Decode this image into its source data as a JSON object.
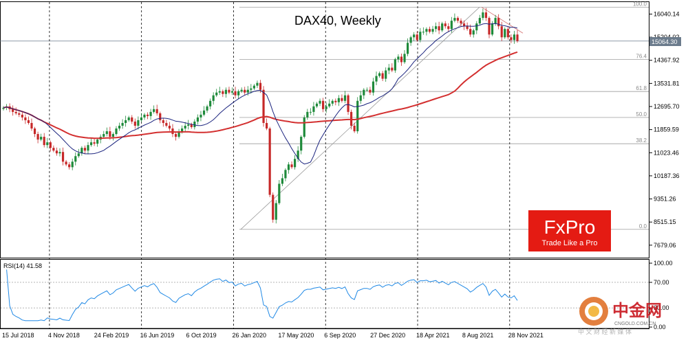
{
  "chart_data": [
    {
      "type": "candlestick",
      "title": "DAX40, Weekly",
      "symbol": "DAX40",
      "timeframe": "Weekly",
      "y_ticks": [
        16040.14,
        15204.02,
        14367.92,
        13531.81,
        12695.7,
        11859.59,
        11023.46,
        10187.36,
        9351.26,
        8515.15,
        7679.06
      ],
      "y_tick_labels": [
        "16040.14",
        "15204.02",
        "14367.92",
        "13531.81",
        "12695.70",
        "11859.59",
        "11023.46",
        "10187.36",
        "9351.26",
        "8515.15",
        "7679.06"
      ],
      "ylim": [
        7400,
        16600
      ],
      "current_price_label": "15064.30",
      "current_price": 15064.3,
      "x_tick_labels": [
        "15 Jul 2018",
        "4 Nov 2018",
        "24 Feb 2019",
        "16 Jun 2019",
        "6 Oct 2019",
        "26 Jan 2020",
        "17 May 2020",
        "6 Sep 2020",
        "27 Dec 2020",
        "18 Apr 2021",
        "8 Aug 2021",
        "28 Nov 2021"
      ],
      "moving_averages": [
        {
          "color": "#1a237e",
          "description": "short-term moving average"
        },
        {
          "color": "#d32f2f",
          "description": "long-term moving average"
        }
      ],
      "fibonacci_levels": [
        {
          "label": "100.0",
          "value": 16290
        },
        {
          "label": "76.4",
          "value": 14400
        },
        {
          "label": "61.8",
          "value": 13240
        },
        {
          "label": "50.0",
          "value": 12300
        },
        {
          "label": "38.2",
          "value": 11350
        },
        {
          "label": "0.0",
          "value": 8250
        }
      ],
      "weekly_closes": [
        12650,
        12700,
        12600,
        12500,
        12450,
        12400,
        12300,
        12200,
        12100,
        11900,
        11700,
        11500,
        11600,
        11300,
        11400,
        11200,
        11100,
        11000,
        11050,
        10700,
        10600,
        10500,
        10700,
        10900,
        11000,
        11200,
        11100,
        11300,
        11400,
        11350,
        11500,
        11600,
        11700,
        11800,
        11600,
        11700,
        11900,
        12000,
        12100,
        12200,
        12300,
        12150,
        12000,
        12200,
        12300,
        12400,
        12350,
        12500,
        12600,
        12450,
        12200,
        12100,
        12000,
        11900,
        11700,
        11600,
        11800,
        11900,
        12000,
        12050,
        11950,
        12150,
        12300,
        12400,
        12550,
        12700,
        12900,
        13100,
        13200,
        13250,
        13150,
        13300,
        13200,
        13250,
        13100,
        13250,
        13300,
        13200,
        13300,
        13350,
        13450,
        13550,
        13300,
        12100,
        11900,
        9500,
        8600,
        9200,
        9900,
        10100,
        10400,
        10600,
        10500,
        10800,
        11100,
        11600,
        12300,
        12500,
        12500,
        12700,
        12800,
        12900,
        12600,
        12700,
        12800,
        12900,
        12850,
        13000,
        12900,
        13100,
        12500,
        12000,
        11800,
        12900,
        13100,
        13300,
        13300,
        13200,
        13600,
        13800,
        13900,
        13700,
        14000,
        14100,
        14000,
        14400,
        14500,
        14300,
        14600,
        15000,
        15200,
        15300,
        15100,
        15400,
        15400,
        15500,
        15400,
        15500,
        15600,
        15450,
        15700,
        15600,
        15500,
        15800,
        15900,
        15800,
        15700,
        15600,
        15500,
        15300,
        15450,
        15700,
        15900,
        16100,
        15900,
        15300,
        15700,
        15900,
        15600,
        15200,
        15500,
        15200,
        15100,
        15300,
        15064
      ],
      "rsi": {
        "label": "RSI(14) 41.58",
        "value": 41.58,
        "y_tick_labels": [
          "100.00",
          "70.00",
          "30.00",
          "0.00"
        ],
        "levels": [
          70,
          30
        ],
        "ylim": [
          0,
          100
        ]
      }
    }
  ],
  "branding": {
    "logo": "FxPro",
    "tagline": "Trade Like a Pro",
    "watermark": "中金网",
    "watermark_sub": "CNGOLD.COM.CN",
    "watermark_cn": "中 文 财 经 新 媒 体",
    "accent": "#e41b13"
  }
}
